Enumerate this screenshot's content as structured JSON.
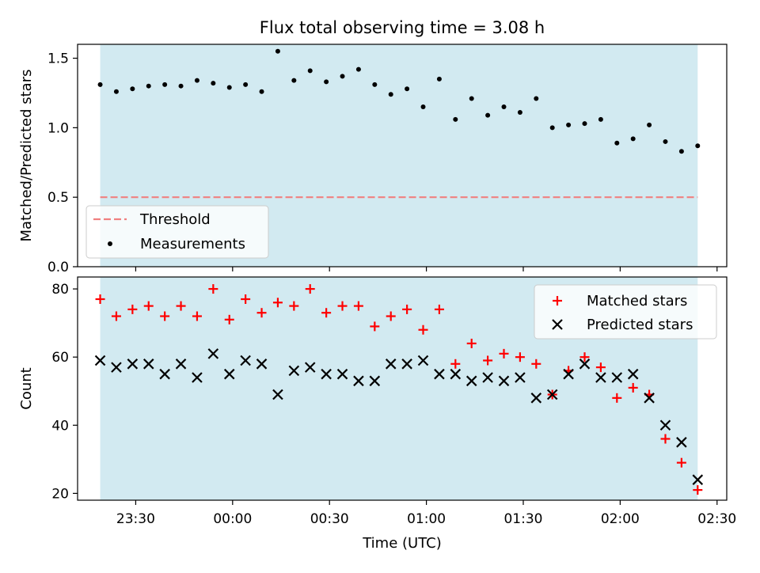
{
  "title": "Flux total observing time = 3.08 h",
  "x_tick_labels": [
    "23:30",
    "00:00",
    "00:30",
    "01:00",
    "01:30",
    "02:00",
    "02:30"
  ],
  "xlabel": "Time (UTC)",
  "colors": {
    "observing_span": "#add8e6",
    "threshold": "#f08080",
    "measurements": "#000000",
    "matched": "#ff0000",
    "predicted": "#000000"
  },
  "chart_data": [
    {
      "type": "scatter",
      "ylabel": "Matched/Predicted stars",
      "ylim": [
        0,
        1.6
      ],
      "yticks": [
        0.0,
        0.5,
        1.0,
        1.5
      ],
      "ytick_labels": [
        "0.0",
        "0.5",
        "1.0",
        "1.5"
      ],
      "xlim": [
        "23:12",
        "02:33"
      ],
      "observing_span": [
        "23:19",
        "02:24"
      ],
      "threshold": 0.5,
      "legend_position": "lower-left",
      "legend": [
        "Threshold",
        "Measurements"
      ],
      "x": [
        "23:19",
        "23:24",
        "23:29",
        "23:34",
        "23:39",
        "23:44",
        "23:49",
        "23:54",
        "23:59",
        "00:04",
        "00:09",
        "00:14",
        "00:19",
        "00:24",
        "00:29",
        "00:34",
        "00:39",
        "00:44",
        "00:49",
        "00:54",
        "00:59",
        "01:04",
        "01:09",
        "01:14",
        "01:19",
        "01:24",
        "01:29",
        "01:34",
        "01:39",
        "01:44",
        "01:49",
        "01:54",
        "01:59",
        "02:04",
        "02:09",
        "02:14",
        "02:19",
        "02:24"
      ],
      "values": [
        1.31,
        1.26,
        1.28,
        1.3,
        1.31,
        1.3,
        1.34,
        1.32,
        1.29,
        1.31,
        1.26,
        1.55,
        1.34,
        1.41,
        1.33,
        1.37,
        1.42,
        1.31,
        1.24,
        1.28,
        1.15,
        1.35,
        1.06,
        1.21,
        1.09,
        1.15,
        1.11,
        1.21,
        1.0,
        1.02,
        1.03,
        1.06,
        0.89,
        0.92,
        1.02,
        0.9,
        0.83,
        0.87
      ]
    },
    {
      "type": "scatter",
      "ylabel": "Count",
      "ylim": [
        18,
        83.5
      ],
      "yticks": [
        20,
        40,
        60,
        80
      ],
      "ytick_labels": [
        "20",
        "40",
        "60",
        "80"
      ],
      "xlim": [
        "23:12",
        "02:33"
      ],
      "observing_span": [
        "23:19",
        "02:24"
      ],
      "legend_position": "upper-right",
      "x": [
        "23:19",
        "23:24",
        "23:29",
        "23:34",
        "23:39",
        "23:44",
        "23:49",
        "23:54",
        "23:59",
        "00:04",
        "00:09",
        "00:14",
        "00:19",
        "00:24",
        "00:29",
        "00:34",
        "00:39",
        "00:44",
        "00:49",
        "00:54",
        "00:59",
        "01:04",
        "01:09",
        "01:14",
        "01:19",
        "01:24",
        "01:29",
        "01:34",
        "01:39",
        "01:44",
        "01:49",
        "01:54",
        "01:59",
        "02:04",
        "02:09",
        "02:14",
        "02:19",
        "02:24"
      ],
      "series": [
        {
          "name": "Matched stars",
          "marker": "plus",
          "values": [
            77,
            72,
            74,
            75,
            72,
            75,
            72,
            80,
            71,
            77,
            73,
            76,
            75,
            80,
            73,
            75,
            75,
            69,
            72,
            74,
            68,
            74,
            58,
            64,
            59,
            61,
            60,
            58,
            49,
            56,
            60,
            57,
            48,
            51,
            49,
            36,
            29,
            21
          ]
        },
        {
          "name": "Predicted stars",
          "marker": "x",
          "values": [
            59,
            57,
            58,
            58,
            55,
            58,
            54,
            61,
            55,
            59,
            58,
            49,
            56,
            57,
            55,
            55,
            53,
            53,
            58,
            58,
            59,
            55,
            55,
            53,
            54,
            53,
            54,
            48,
            49,
            55,
            58,
            54,
            54,
            55,
            48,
            40,
            35,
            24
          ]
        }
      ]
    }
  ]
}
